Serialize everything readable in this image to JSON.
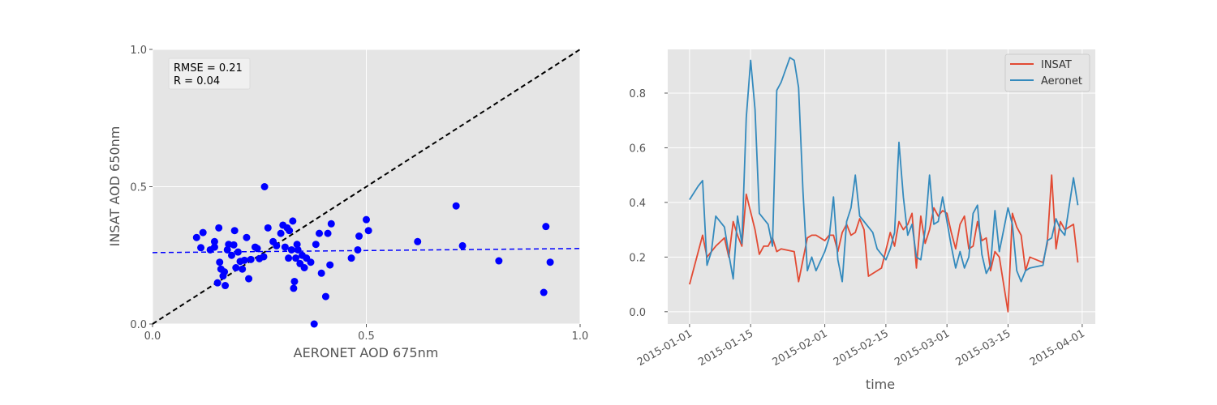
{
  "colors": {
    "panel_bg": "#e5e5e5",
    "grid": "#ffffff",
    "scatter_points": "#0000ff",
    "fit_line": "#0000ff",
    "identity_line": "#000000",
    "insat": "#e24a33",
    "aeronet": "#348abd"
  },
  "chart_data": [
    {
      "type": "scatter",
      "xlabel": "AERONET AOD 675nm",
      "ylabel": "INSAT AOD 650nm",
      "xlim": [
        0.0,
        1.0
      ],
      "ylim": [
        0.0,
        1.0
      ],
      "xticks": [
        "0.0",
        "0.5",
        "1.0"
      ],
      "yticks": [
        "0.0",
        "0.5",
        "1.0"
      ],
      "grid": true,
      "annotation": [
        "RMSE = 0.21",
        "R = 0.04"
      ],
      "identity_line": [
        [
          0,
          0
        ],
        [
          1,
          1
        ]
      ],
      "fit_line": [
        [
          0,
          0.26
        ],
        [
          1,
          0.275
        ]
      ],
      "points": [
        [
          0.103,
          0.315
        ],
        [
          0.113,
          0.278
        ],
        [
          0.118,
          0.333
        ],
        [
          0.135,
          0.27
        ],
        [
          0.145,
          0.3
        ],
        [
          0.145,
          0.28
        ],
        [
          0.152,
          0.15
        ],
        [
          0.155,
          0.35
        ],
        [
          0.157,
          0.225
        ],
        [
          0.16,
          0.2
        ],
        [
          0.165,
          0.175
        ],
        [
          0.168,
          0.19
        ],
        [
          0.17,
          0.14
        ],
        [
          0.175,
          0.27
        ],
        [
          0.178,
          0.29
        ],
        [
          0.185,
          0.25
        ],
        [
          0.19,
          0.288
        ],
        [
          0.192,
          0.34
        ],
        [
          0.195,
          0.205
        ],
        [
          0.2,
          0.262
        ],
        [
          0.205,
          0.228
        ],
        [
          0.21,
          0.2
        ],
        [
          0.215,
          0.232
        ],
        [
          0.22,
          0.315
        ],
        [
          0.225,
          0.165
        ],
        [
          0.23,
          0.235
        ],
        [
          0.24,
          0.28
        ],
        [
          0.245,
          0.275
        ],
        [
          0.25,
          0.238
        ],
        [
          0.26,
          0.245
        ],
        [
          0.262,
          0.5
        ],
        [
          0.27,
          0.35
        ],
        [
          0.282,
          0.3
        ],
        [
          0.29,
          0.285
        ],
        [
          0.3,
          0.33
        ],
        [
          0.305,
          0.36
        ],
        [
          0.31,
          0.28
        ],
        [
          0.315,
          0.35
        ],
        [
          0.318,
          0.24
        ],
        [
          0.32,
          0.34
        ],
        [
          0.325,
          0.27
        ],
        [
          0.328,
          0.375
        ],
        [
          0.33,
          0.13
        ],
        [
          0.332,
          0.155
        ],
        [
          0.335,
          0.24
        ],
        [
          0.338,
          0.29
        ],
        [
          0.34,
          0.27
        ],
        [
          0.345,
          0.22
        ],
        [
          0.35,
          0.25
        ],
        [
          0.355,
          0.205
        ],
        [
          0.36,
          0.24
        ],
        [
          0.37,
          0.225
        ],
        [
          0.378,
          0.0
        ],
        [
          0.382,
          0.29
        ],
        [
          0.39,
          0.33
        ],
        [
          0.395,
          0.185
        ],
        [
          0.405,
          0.1
        ],
        [
          0.41,
          0.33
        ],
        [
          0.415,
          0.215
        ],
        [
          0.418,
          0.365
        ],
        [
          0.465,
          0.24
        ],
        [
          0.48,
          0.27
        ],
        [
          0.483,
          0.32
        ],
        [
          0.5,
          0.38
        ],
        [
          0.505,
          0.34
        ],
        [
          0.62,
          0.3
        ],
        [
          0.71,
          0.43
        ],
        [
          0.725,
          0.285
        ],
        [
          0.81,
          0.23
        ],
        [
          0.915,
          0.115
        ],
        [
          0.92,
          0.355
        ],
        [
          0.93,
          0.225
        ]
      ]
    },
    {
      "type": "line",
      "xlabel": "time",
      "xticks": [
        "2015-01-01",
        "2015-01-15",
        "2015-02-01",
        "2015-02-15",
        "2015-03-01",
        "2015-03-15",
        "2015-04-01"
      ],
      "yticks": [
        "0.0",
        "0.2",
        "0.4",
        "0.6",
        "0.8"
      ],
      "ylim": [
        -0.045,
        0.96
      ],
      "xlim": [
        "2014-12-27",
        "2015-04-04"
      ],
      "grid": true,
      "legend_position": "top-right",
      "series": [
        {
          "name": "INSAT",
          "color": "#e24a33",
          "points": [
            [
              "2015-01-01",
              0.1
            ],
            [
              "2015-01-04",
              0.28
            ],
            [
              "2015-01-05",
              0.2
            ],
            [
              "2015-01-07",
              0.24
            ],
            [
              "2015-01-09",
              0.27
            ],
            [
              "2015-01-10",
              0.2
            ],
            [
              "2015-01-11",
              0.33
            ],
            [
              "2015-01-12",
              0.28
            ],
            [
              "2015-01-13",
              0.24
            ],
            [
              "2015-01-14",
              0.43
            ],
            [
              "2015-01-16",
              0.3
            ],
            [
              "2015-01-17",
              0.21
            ],
            [
              "2015-01-18",
              0.24
            ],
            [
              "2015-01-19",
              0.24
            ],
            [
              "2015-01-20",
              0.27
            ],
            [
              "2015-01-21",
              0.22
            ],
            [
              "2015-01-22",
              0.23
            ],
            [
              "2015-01-25",
              0.22
            ],
            [
              "2015-01-26",
              0.11
            ],
            [
              "2015-01-28",
              0.27
            ],
            [
              "2015-01-29",
              0.28
            ],
            [
              "2015-01-30",
              0.28
            ],
            [
              "2015-02-01",
              0.26
            ],
            [
              "2015-02-02",
              0.28
            ],
            [
              "2015-02-03",
              0.28
            ],
            [
              "2015-02-04",
              0.22
            ],
            [
              "2015-02-05",
              0.29
            ],
            [
              "2015-02-06",
              0.32
            ],
            [
              "2015-02-07",
              0.28
            ],
            [
              "2015-02-08",
              0.29
            ],
            [
              "2015-02-09",
              0.34
            ],
            [
              "2015-02-10",
              0.3
            ],
            [
              "2015-02-11",
              0.13
            ],
            [
              "2015-02-14",
              0.16
            ],
            [
              "2015-02-16",
              0.29
            ],
            [
              "2015-02-17",
              0.24
            ],
            [
              "2015-02-18",
              0.33
            ],
            [
              "2015-02-19",
              0.3
            ],
            [
              "2015-02-20",
              0.32
            ],
            [
              "2015-02-21",
              0.36
            ],
            [
              "2015-02-22",
              0.16
            ],
            [
              "2015-02-23",
              0.35
            ],
            [
              "2015-02-24",
              0.25
            ],
            [
              "2015-02-25",
              0.3
            ],
            [
              "2015-02-26",
              0.38
            ],
            [
              "2015-02-27",
              0.35
            ],
            [
              "2015-02-28",
              0.37
            ],
            [
              "2015-03-01",
              0.36
            ],
            [
              "2015-03-02",
              0.29
            ],
            [
              "2015-03-03",
              0.23
            ],
            [
              "2015-03-04",
              0.32
            ],
            [
              "2015-03-05",
              0.35
            ],
            [
              "2015-03-06",
              0.23
            ],
            [
              "2015-03-07",
              0.24
            ],
            [
              "2015-03-08",
              0.33
            ],
            [
              "2015-03-09",
              0.26
            ],
            [
              "2015-03-10",
              0.27
            ],
            [
              "2015-03-11",
              0.15
            ],
            [
              "2015-03-12",
              0.22
            ],
            [
              "2015-03-13",
              0.2
            ],
            [
              "2015-03-15",
              0.0
            ],
            [
              "2015-03-16",
              0.36
            ],
            [
              "2015-03-17",
              0.31
            ],
            [
              "2015-03-18",
              0.28
            ],
            [
              "2015-03-19",
              0.15
            ],
            [
              "2015-03-20",
              0.2
            ],
            [
              "2015-03-23",
              0.18
            ],
            [
              "2015-03-24",
              0.25
            ],
            [
              "2015-03-25",
              0.5
            ],
            [
              "2015-03-26",
              0.23
            ],
            [
              "2015-03-27",
              0.33
            ],
            [
              "2015-03-28",
              0.3
            ],
            [
              "2015-03-30",
              0.32
            ],
            [
              "2015-03-31",
              0.18
            ]
          ]
        },
        {
          "name": "Aeronet",
          "color": "#348abd",
          "points": [
            [
              "2015-01-01",
              0.41
            ],
            [
              "2015-01-03",
              0.46
            ],
            [
              "2015-01-04",
              0.48
            ],
            [
              "2015-01-05",
              0.17
            ],
            [
              "2015-01-06",
              0.22
            ],
            [
              "2015-01-07",
              0.35
            ],
            [
              "2015-01-09",
              0.31
            ],
            [
              "2015-01-10",
              0.21
            ],
            [
              "2015-01-11",
              0.12
            ],
            [
              "2015-01-12",
              0.35
            ],
            [
              "2015-01-13",
              0.25
            ],
            [
              "2015-01-14",
              0.71
            ],
            [
              "2015-01-15",
              0.92
            ],
            [
              "2015-01-16",
              0.74
            ],
            [
              "2015-01-17",
              0.36
            ],
            [
              "2015-01-19",
              0.32
            ],
            [
              "2015-01-20",
              0.24
            ],
            [
              "2015-01-21",
              0.81
            ],
            [
              "2015-01-22",
              0.84
            ],
            [
              "2015-01-24",
              0.93
            ],
            [
              "2015-01-25",
              0.92
            ],
            [
              "2015-01-26",
              0.82
            ],
            [
              "2015-01-27",
              0.44
            ],
            [
              "2015-01-28",
              0.15
            ],
            [
              "2015-01-29",
              0.2
            ],
            [
              "2015-01-30",
              0.15
            ],
            [
              "2015-02-01",
              0.22
            ],
            [
              "2015-02-02",
              0.27
            ],
            [
              "2015-02-03",
              0.42
            ],
            [
              "2015-02-04",
              0.19
            ],
            [
              "2015-02-05",
              0.11
            ],
            [
              "2015-02-06",
              0.33
            ],
            [
              "2015-02-07",
              0.38
            ],
            [
              "2015-02-08",
              0.5
            ],
            [
              "2015-02-09",
              0.35
            ],
            [
              "2015-02-10",
              0.33
            ],
            [
              "2015-02-12",
              0.29
            ],
            [
              "2015-02-13",
              0.23
            ],
            [
              "2015-02-14",
              0.21
            ],
            [
              "2015-02-15",
              0.19
            ],
            [
              "2015-02-16",
              0.23
            ],
            [
              "2015-02-17",
              0.29
            ],
            [
              "2015-02-18",
              0.62
            ],
            [
              "2015-02-19",
              0.42
            ],
            [
              "2015-02-20",
              0.28
            ],
            [
              "2015-02-21",
              0.32
            ],
            [
              "2015-02-22",
              0.2
            ],
            [
              "2015-02-23",
              0.19
            ],
            [
              "2015-02-24",
              0.3
            ],
            [
              "2015-02-25",
              0.5
            ],
            [
              "2015-02-26",
              0.32
            ],
            [
              "2015-02-27",
              0.33
            ],
            [
              "2015-02-28",
              0.42
            ],
            [
              "2015-03-01",
              0.33
            ],
            [
              "2015-03-02",
              0.24
            ],
            [
              "2015-03-03",
              0.16
            ],
            [
              "2015-03-04",
              0.22
            ],
            [
              "2015-03-05",
              0.16
            ],
            [
              "2015-03-06",
              0.2
            ],
            [
              "2015-03-07",
              0.36
            ],
            [
              "2015-03-08",
              0.39
            ],
            [
              "2015-03-09",
              0.21
            ],
            [
              "2015-03-10",
              0.14
            ],
            [
              "2015-03-11",
              0.17
            ],
            [
              "2015-03-12",
              0.37
            ],
            [
              "2015-03-13",
              0.22
            ],
            [
              "2015-03-14",
              0.3
            ],
            [
              "2015-03-15",
              0.38
            ],
            [
              "2015-03-16",
              0.32
            ],
            [
              "2015-03-17",
              0.15
            ],
            [
              "2015-03-18",
              0.11
            ],
            [
              "2015-03-19",
              0.15
            ],
            [
              "2015-03-20",
              0.16
            ],
            [
              "2015-03-23",
              0.17
            ],
            [
              "2015-03-24",
              0.26
            ],
            [
              "2015-03-25",
              0.27
            ],
            [
              "2015-03-26",
              0.34
            ],
            [
              "2015-03-27",
              0.3
            ],
            [
              "2015-03-28",
              0.28
            ],
            [
              "2015-03-30",
              0.49
            ],
            [
              "2015-03-31",
              0.39
            ]
          ]
        }
      ]
    }
  ]
}
